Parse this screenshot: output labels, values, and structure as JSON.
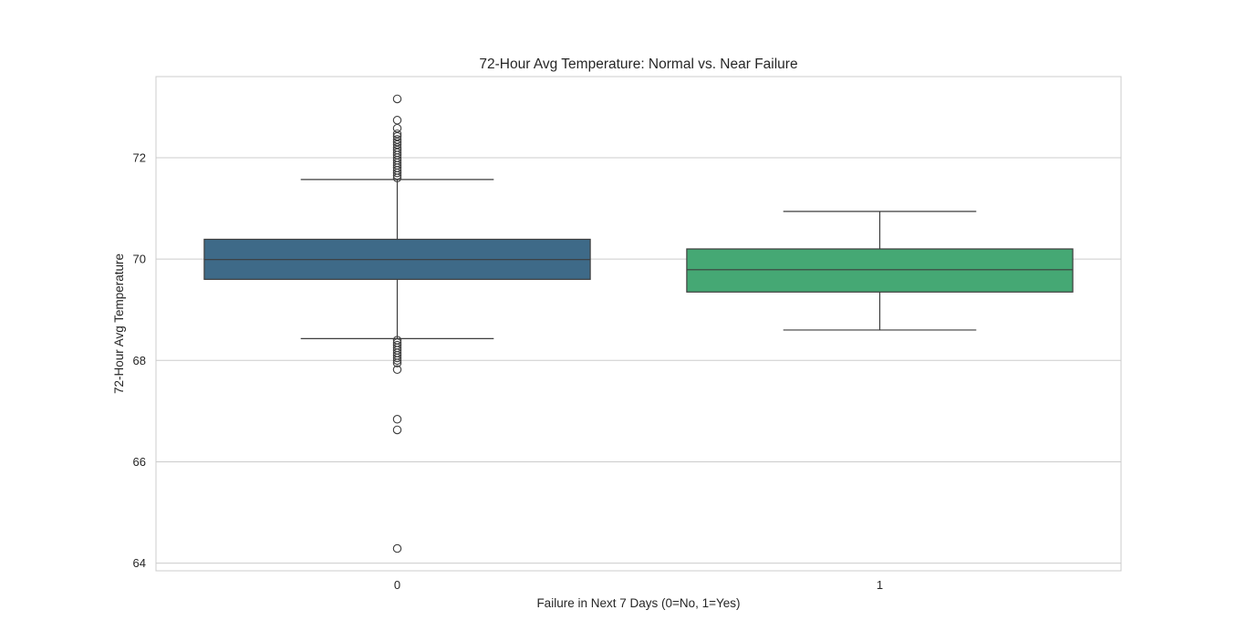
{
  "chart_data": {
    "type": "box",
    "title": "72-Hour Avg Temperature: Normal vs. Near Failure",
    "xlabel": "Failure in Next 7 Days (0=No, 1=Yes)",
    "ylabel": "72-Hour Avg Temperature",
    "categories": [
      "0",
      "1"
    ],
    "yticks": [
      64,
      66,
      68,
      70,
      72
    ],
    "ylim": [
      63.85,
      73.6
    ],
    "grid": "horizontal",
    "boxes": [
      {
        "category": "0",
        "color": "#3e6a88",
        "q1": 69.6,
        "median": 69.99,
        "q3": 70.39,
        "whisker_low": 68.43,
        "whisker_high": 71.57,
        "outliers": [
          73.16,
          72.74,
          72.58,
          72.47,
          72.42,
          72.36,
          72.31,
          72.26,
          72.2,
          72.15,
          72.1,
          72.05,
          72.0,
          71.95,
          71.9,
          71.85,
          71.8,
          71.75,
          71.7,
          71.65,
          71.6,
          68.4,
          68.35,
          68.3,
          68.25,
          68.2,
          68.15,
          68.1,
          68.05,
          68.0,
          67.95,
          67.82,
          66.84,
          66.63,
          64.29
        ]
      },
      {
        "category": "1",
        "color": "#45a874",
        "q1": 69.35,
        "median": 69.79,
        "q3": 70.2,
        "whisker_low": 68.6,
        "whisker_high": 70.94,
        "outliers": []
      }
    ]
  }
}
